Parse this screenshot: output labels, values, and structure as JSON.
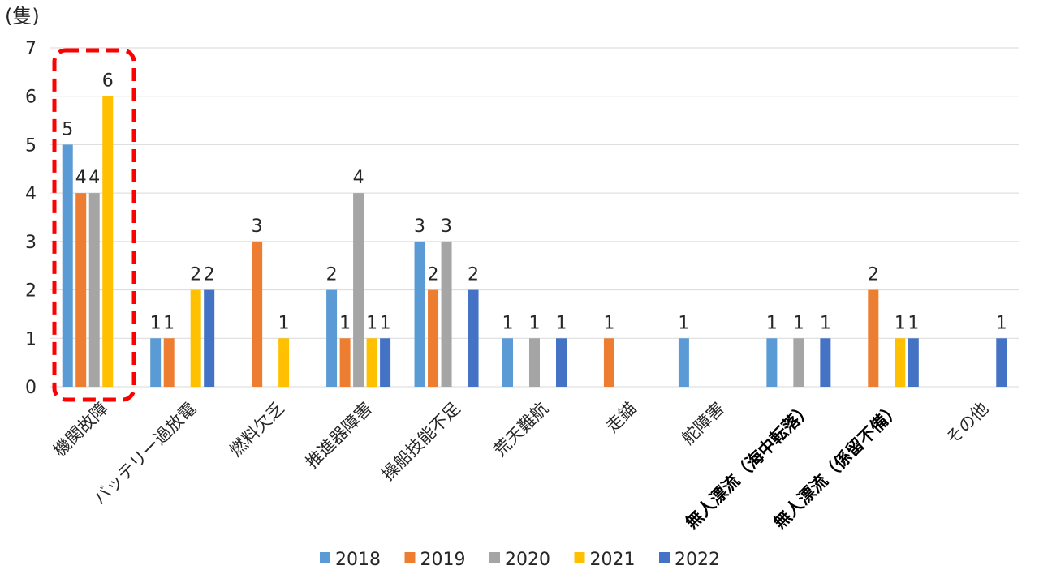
{
  "chart_data": {
    "type": "bar",
    "unit_label": "(隻)",
    "categories": [
      "機関故障",
      "バッテリー過放電",
      "燃料欠乏",
      "推進器障害",
      "操船技能不足",
      "荒天難航",
      "走錨",
      "舵障害",
      "無人漂流（海中転落）",
      "無人漂流（係留不備）",
      "その他"
    ],
    "bold_categories": [
      "無人漂流（海中転落）",
      "無人漂流（係留不備）"
    ],
    "series": [
      {
        "name": "2018",
        "color": "#5B9BD5",
        "values": [
          5,
          1,
          0,
          2,
          3,
          1,
          0,
          1,
          1,
          0,
          0
        ]
      },
      {
        "name": "2019",
        "color": "#ED7D31",
        "values": [
          4,
          1,
          3,
          1,
          2,
          0,
          1,
          0,
          0,
          2,
          0
        ]
      },
      {
        "name": "2020",
        "color": "#A5A5A5",
        "values": [
          4,
          0,
          0,
          4,
          3,
          1,
          0,
          0,
          1,
          0,
          0
        ]
      },
      {
        "name": "2021",
        "color": "#FFC000",
        "values": [
          6,
          2,
          1,
          1,
          0,
          0,
          0,
          0,
          0,
          1,
          0
        ]
      },
      {
        "name": "2022",
        "color": "#4472C4",
        "values": [
          0,
          2,
          0,
          1,
          2,
          1,
          0,
          0,
          1,
          1,
          1
        ]
      }
    ],
    "ylim": [
      0,
      7
    ],
    "yticks": [
      0,
      1,
      2,
      3,
      4,
      5,
      6,
      7
    ],
    "grid": true,
    "legend": "bottom",
    "highlight": {
      "category": "機関故障",
      "color": "#FF0000",
      "style": "dashed-box"
    }
  }
}
